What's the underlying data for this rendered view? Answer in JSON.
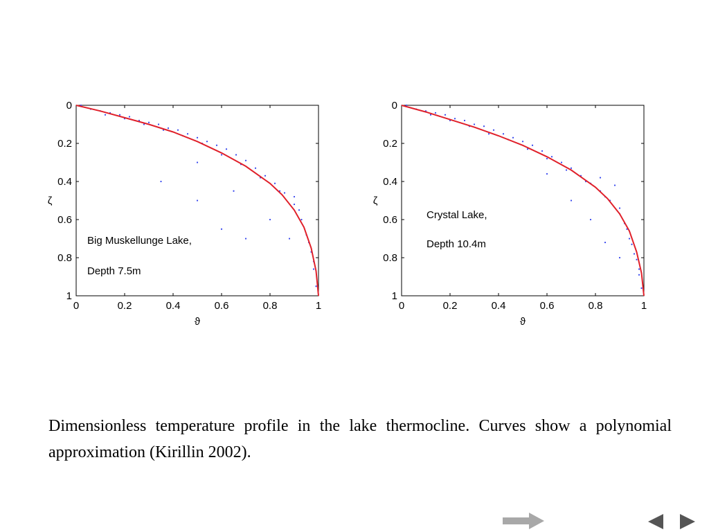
{
  "chart_data": [
    {
      "type": "scatter",
      "annotation_lines": [
        "Big Muskellunge Lake,",
        "Depth 7.5m"
      ],
      "xlabel": "ϑ",
      "ylabel": "ζ",
      "xlim": [
        0,
        1
      ],
      "ylim": [
        0,
        1
      ],
      "y_inverted": true,
      "xticks": [
        0,
        0.2,
        0.4,
        0.6,
        0.8,
        1
      ],
      "xtick_labels": [
        "0",
        "0.2",
        "0.4",
        "0.6",
        "0.8",
        "1"
      ],
      "yticks": [
        0,
        0.2,
        0.4,
        0.6,
        0.8,
        1
      ],
      "ytick_labels": [
        "0",
        "0.2",
        "0.4",
        "0.6",
        "0.8",
        "1"
      ],
      "grid": false,
      "series": [
        {
          "kind": "scatter",
          "color": "#3344ee",
          "points": [
            [
              0.02,
              0.0
            ],
            [
              0.06,
              0.02
            ],
            [
              0.1,
              0.03
            ],
            [
              0.14,
              0.04
            ],
            [
              0.18,
              0.05
            ],
            [
              0.22,
              0.06
            ],
            [
              0.26,
              0.08
            ],
            [
              0.3,
              0.09
            ],
            [
              0.34,
              0.1
            ],
            [
              0.38,
              0.12
            ],
            [
              0.42,
              0.13
            ],
            [
              0.46,
              0.15
            ],
            [
              0.5,
              0.17
            ],
            [
              0.54,
              0.19
            ],
            [
              0.58,
              0.21
            ],
            [
              0.62,
              0.23
            ],
            [
              0.66,
              0.26
            ],
            [
              0.7,
              0.29
            ],
            [
              0.74,
              0.33
            ],
            [
              0.78,
              0.37
            ],
            [
              0.82,
              0.41
            ],
            [
              0.86,
              0.46
            ],
            [
              0.9,
              0.52
            ],
            [
              0.93,
              0.6
            ],
            [
              0.95,
              0.68
            ],
            [
              0.97,
              0.77
            ],
            [
              0.98,
              0.86
            ],
            [
              0.99,
              0.95
            ],
            [
              0.12,
              0.05
            ],
            [
              0.2,
              0.07
            ],
            [
              0.28,
              0.1
            ],
            [
              0.36,
              0.13
            ],
            [
              0.44,
              0.16
            ],
            [
              0.52,
              0.2
            ],
            [
              0.6,
              0.26
            ],
            [
              0.68,
              0.31
            ],
            [
              0.76,
              0.38
            ],
            [
              0.84,
              0.45
            ],
            [
              0.9,
              0.48
            ],
            [
              0.92,
              0.55
            ],
            [
              0.96,
              0.72
            ],
            [
              0.98,
              0.82
            ],
            [
              0.35,
              0.4
            ],
            [
              0.5,
              0.5
            ],
            [
              0.6,
              0.65
            ],
            [
              0.7,
              0.7
            ],
            [
              0.5,
              0.3
            ],
            [
              0.65,
              0.45
            ],
            [
              0.8,
              0.6
            ],
            [
              0.88,
              0.7
            ]
          ]
        },
        {
          "kind": "line",
          "color": "#e0202a",
          "x": [
            0,
            0.1,
            0.2,
            0.3,
            0.4,
            0.5,
            0.6,
            0.7,
            0.8,
            0.85,
            0.9,
            0.94,
            0.97,
            0.99,
            1.0
          ],
          "y": [
            0,
            0.03,
            0.065,
            0.1,
            0.14,
            0.19,
            0.25,
            0.32,
            0.41,
            0.47,
            0.55,
            0.64,
            0.75,
            0.87,
            1.0
          ]
        }
      ]
    },
    {
      "type": "scatter",
      "annotation_lines": [
        "Crystal Lake,",
        "Depth 10.4m"
      ],
      "xlabel": "ϑ",
      "ylabel": "ζ",
      "xlim": [
        0,
        1
      ],
      "ylim": [
        0,
        1
      ],
      "y_inverted": true,
      "xticks": [
        0,
        0.2,
        0.4,
        0.6,
        0.8,
        1
      ],
      "xtick_labels": [
        "0",
        "0.2",
        "0.4",
        "0.6",
        "0.8",
        "1"
      ],
      "yticks": [
        0,
        0.2,
        0.4,
        0.6,
        0.8,
        1
      ],
      "ytick_labels": [
        "0",
        "0.2",
        "0.4",
        "0.6",
        "0.8",
        "1"
      ],
      "grid": false,
      "series": [
        {
          "kind": "scatter",
          "color": "#3344ee",
          "points": [
            [
              0.02,
              0.0
            ],
            [
              0.06,
              0.02
            ],
            [
              0.1,
              0.03
            ],
            [
              0.14,
              0.04
            ],
            [
              0.18,
              0.05
            ],
            [
              0.22,
              0.07
            ],
            [
              0.26,
              0.08
            ],
            [
              0.3,
              0.1
            ],
            [
              0.34,
              0.11
            ],
            [
              0.38,
              0.13
            ],
            [
              0.42,
              0.15
            ],
            [
              0.46,
              0.17
            ],
            [
              0.5,
              0.19
            ],
            [
              0.54,
              0.21
            ],
            [
              0.58,
              0.24
            ],
            [
              0.62,
              0.27
            ],
            [
              0.66,
              0.3
            ],
            [
              0.7,
              0.33
            ],
            [
              0.74,
              0.37
            ],
            [
              0.78,
              0.41
            ],
            [
              0.82,
              0.45
            ],
            [
              0.86,
              0.5
            ],
            [
              0.9,
              0.57
            ],
            [
              0.93,
              0.65
            ],
            [
              0.95,
              0.73
            ],
            [
              0.97,
              0.81
            ],
            [
              0.98,
              0.89
            ],
            [
              0.99,
              0.96
            ],
            [
              0.12,
              0.05
            ],
            [
              0.2,
              0.08
            ],
            [
              0.28,
              0.11
            ],
            [
              0.36,
              0.15
            ],
            [
              0.44,
              0.18
            ],
            [
              0.52,
              0.23
            ],
            [
              0.6,
              0.28
            ],
            [
              0.68,
              0.34
            ],
            [
              0.76,
              0.4
            ],
            [
              0.84,
              0.48
            ],
            [
              0.9,
              0.54
            ],
            [
              0.92,
              0.62
            ],
            [
              0.96,
              0.78
            ],
            [
              0.98,
              0.86
            ],
            [
              0.7,
              0.5
            ],
            [
              0.78,
              0.6
            ],
            [
              0.84,
              0.72
            ],
            [
              0.9,
              0.8
            ],
            [
              0.6,
              0.36
            ],
            [
              0.82,
              0.38
            ],
            [
              0.88,
              0.42
            ],
            [
              0.94,
              0.7
            ]
          ]
        },
        {
          "kind": "line",
          "color": "#e0202a",
          "x": [
            0,
            0.1,
            0.2,
            0.3,
            0.4,
            0.5,
            0.6,
            0.7,
            0.8,
            0.85,
            0.9,
            0.94,
            0.97,
            0.99,
            1.0
          ],
          "y": [
            0,
            0.035,
            0.075,
            0.115,
            0.16,
            0.21,
            0.27,
            0.34,
            0.43,
            0.49,
            0.57,
            0.66,
            0.77,
            0.88,
            1.0
          ]
        }
      ]
    }
  ],
  "caption": "Dimensionless temperature profile in the lake thermocline. Curves show a polynomial approximation (Kirillin 2002).",
  "nav": {
    "forward_icon": "forward-arrow-icon",
    "prev_icon": "previous-triangle-icon",
    "next_icon": "next-triangle-icon",
    "arrow_color": "#a8a8a8",
    "triangle_color": "#555555"
  }
}
